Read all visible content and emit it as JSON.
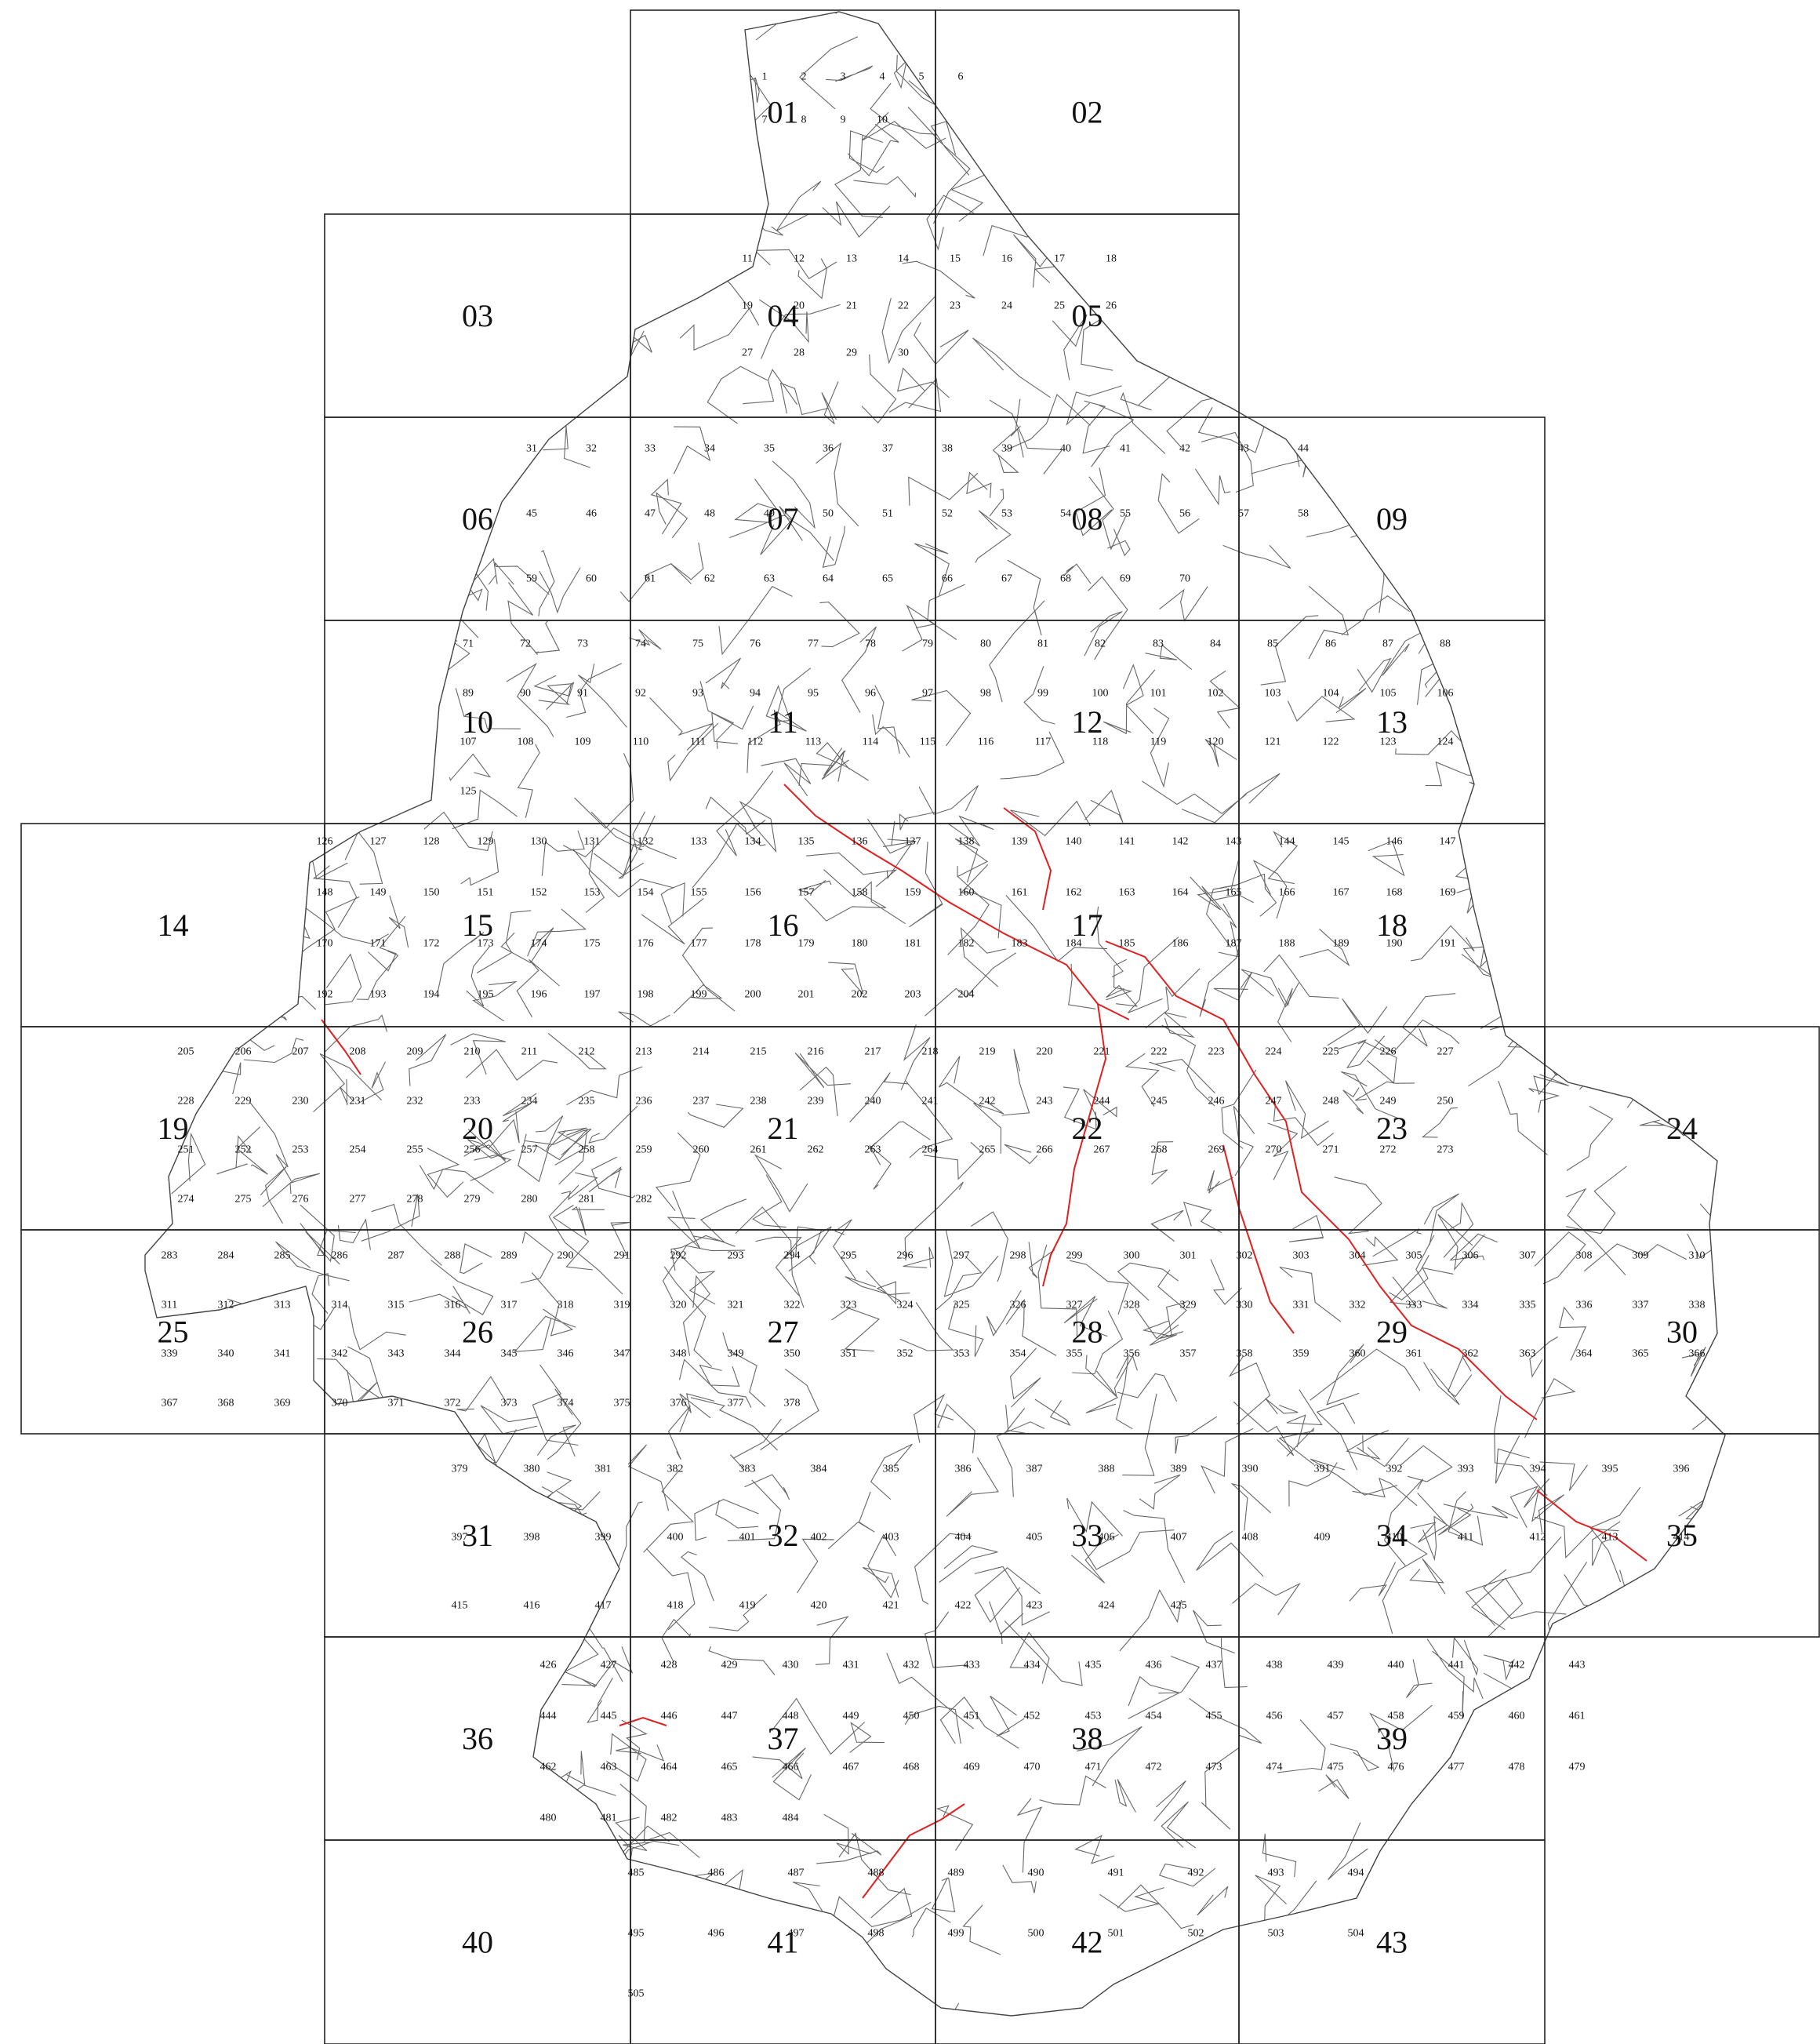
{
  "map": {
    "colors": {
      "grid": "#222222",
      "boundary": "#444444",
      "parcels": "#666666",
      "highlight": "#e02020",
      "background": "#ffffff"
    },
    "sheets": [
      "01",
      "02",
      "03",
      "04",
      "05",
      "06",
      "07",
      "08",
      "09",
      "10",
      "11",
      "12",
      "13",
      "14",
      "15",
      "16",
      "17",
      "18",
      "19",
      "20",
      "21",
      "22",
      "23",
      "24",
      "25",
      "26",
      "27",
      "28",
      "29",
      "30",
      "31",
      "32",
      "33",
      "34",
      "35",
      "36",
      "37",
      "38",
      "39",
      "40",
      "41",
      "42",
      "43"
    ],
    "parcels_visible": [
      "1",
      "505"
    ]
  }
}
